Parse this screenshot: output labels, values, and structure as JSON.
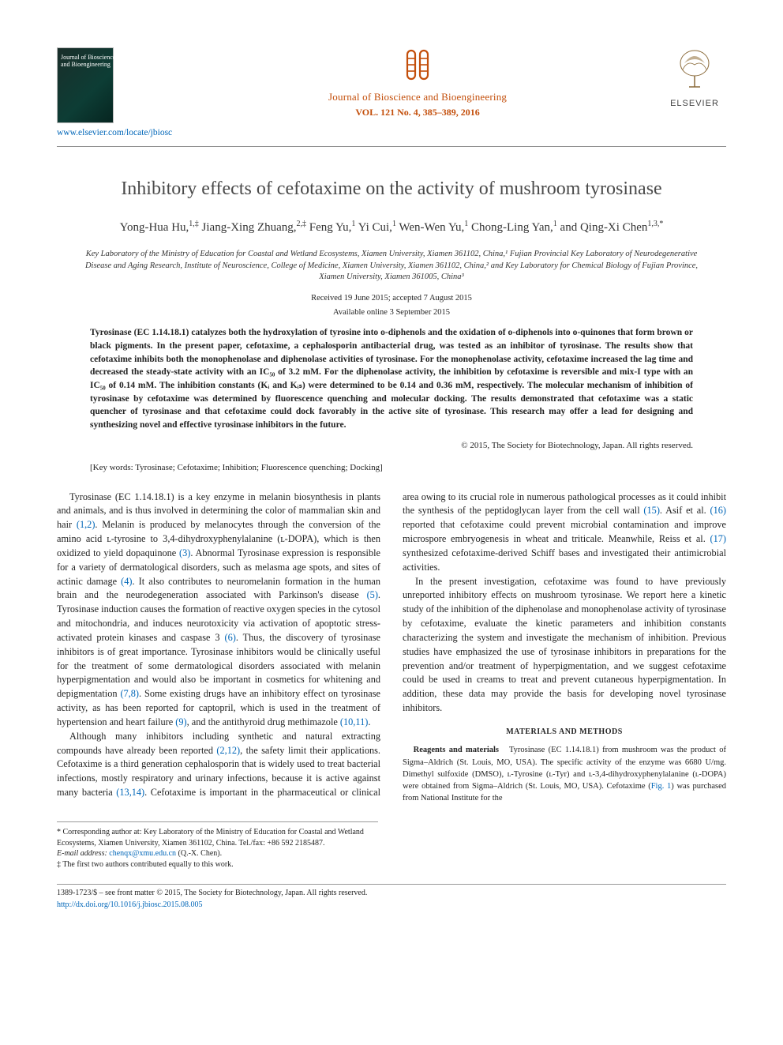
{
  "header": {
    "journal_thumb_text": "Journal of\nBioscience and\nBioengineering",
    "journal_name": "Journal of Bioscience and Bioengineering",
    "vol_line": "VOL. 121 No. 4, 385–389, 2016",
    "elsevier": "ELSEVIER",
    "locate_link": "www.elsevier.com/locate/jbiosc",
    "colors": {
      "brand": "#c34e0a",
      "link": "#0066b8",
      "rule": "#8f8f8f"
    }
  },
  "title": "Inhibitory effects of cefotaxime on the activity of mushroom tyrosinase",
  "authors_html": "Yong-Hua Hu,<sup>1,‡</sup> Jiang-Xing Zhuang,<sup>2,‡</sup> Feng Yu,<sup>1</sup> Yi Cui,<sup>1</sup> Wen-Wen Yu,<sup>1</sup> Chong-Ling Yan,<sup>1</sup> and Qing-Xi Chen<sup>1,3,*</sup>",
  "affiliations": "Key Laboratory of the Ministry of Education for Coastal and Wetland Ecosystems, Xiamen University, Xiamen 361102, China,¹ Fujian Provincial Key Laboratory of Neurodegenerative Disease and Aging Research, Institute of Neuroscience, College of Medicine, Xiamen University, Xiamen 361102, China,² and Key Laboratory for Chemical Biology of Fujian Province, Xiamen University, Xiamen 361005, China³",
  "dates": {
    "received": "Received 19 June 2015; accepted 7 August 2015",
    "online": "Available online 3 September 2015"
  },
  "abstract": "Tyrosinase (EC 1.14.18.1) catalyzes both the hydroxylation of tyrosine into o-diphenols and the oxidation of o-diphenols into o-quinones that form brown or black pigments. In the present paper, cefotaxime, a cephalosporin antibacterial drug, was tested as an inhibitor of tyrosinase. The results show that cefotaxime inhibits both the monophenolase and diphenolase activities of tyrosinase. For the monophenolase activity, cefotaxime increased the lag time and decreased the steady-state activity with an IC₅₀ of 3.2 mM. For the diphenolase activity, the inhibition by cefotaxime is reversible and mix-I type with an IC₅₀ of 0.14 mM. The inhibition constants (Kᵢ and Kᵢₛ) were determined to be 0.14 and 0.36 mM, respectively. The molecular mechanism of inhibition of tyrosinase by cefotaxime was determined by fluorescence quenching and molecular docking. The results demonstrated that cefotaxime was a static quencher of tyrosinase and that cefotaxime could dock favorably in the active site of tyrosinase. This research may offer a lead for designing and synthesizing novel and effective tyrosinase inhibitors in the future.",
  "copyright": "© 2015, The Society for Biotechnology, Japan. All rights reserved.",
  "keywords": "[Key words: Tyrosinase; Cefotaxime; Inhibition; Fluorescence quenching; Docking]",
  "body": {
    "p1": "Tyrosinase (EC 1.14.18.1) is a key enzyme in melanin biosynthesis in plants and animals, and is thus involved in determining the color of mammalian skin and hair ",
    "p1_ref": "(1,2)",
    "p1b": ". Melanin is produced by melanocytes through the conversion of the amino acid ʟ-tyrosine to 3,4-dihydroxyphenylalanine (ʟ-DOPA), which is then oxidized to yield dopaquinone ",
    "p1_ref2": "(3)",
    "p1c": ". Abnormal Tyrosinase expression is responsible for a variety of dermatological disorders, such as melasma age spots, and sites of actinic damage ",
    "p1_ref3": "(4)",
    "p1d": ". It also contributes to neuromelanin formation in the human brain and the neurodegeneration associated with Parkinson's disease ",
    "p1_ref4": "(5)",
    "p1e": ". Tyrosinase induction causes the formation of reactive oxygen species in the cytosol and mitochondria, and induces neurotoxicity via activation of apoptotic stress-activated protein kinases and caspase 3 ",
    "p1_ref5": "(6)",
    "p1f": ". Thus, the discovery of tyrosinase inhibitors is of great importance. Tyrosinase inhibitors would be clinically useful for the treatment of some dermatological disorders associated with melanin hyperpigmentation and would also be important in cosmetics for whitening and depigmentation ",
    "p1_ref6": "(7,8)",
    "p1g": ". Some existing drugs have an inhibitory effect on tyrosinase activity, as has been reported for captopril, which is used in the treatment of hypertension and heart failure ",
    "p1_ref7": "(9)",
    "p1h": ", and the antithyroid drug methimazole ",
    "p1_ref8": "(10,11)",
    "p1i": ".",
    "p2a": "Although many inhibitors including synthetic and natural extracting compounds have already been reported ",
    "p2_ref1": "(2,12)",
    "p2b": ", the safety limit their applications. Cefotaxime is a third generation cephalosporin that is widely used to treat bacterial infections, mostly respiratory and urinary infections, because it is active against many bacteria ",
    "p2_ref2": "(13,14)",
    "p2c": ". Cefotaxime is important in the pharmaceutical or clinical area owing to its crucial role in numerous pathological processes as it could inhibit the synthesis of the peptidoglycan layer from the cell wall ",
    "p2_ref3": "(15)",
    "p2d": ". Asif et al. ",
    "p2_ref4": "(16)",
    "p2e": " reported that cefotaxime could prevent microbial contamination and improve microspore embryogenesis in wheat and triticale. Meanwhile, Reiss et al. ",
    "p2_ref5": "(17)",
    "p2f": " synthesized cefotaxime-derived Schiff bases and investigated their antimicrobial activities.",
    "p3": "In the present investigation, cefotaxime was found to have previously unreported inhibitory effects on mushroom tyrosinase. We report here a kinetic study of the inhibition of the diphenolase and monophenolase activity of tyrosinase by cefotaxime, evaluate the kinetic parameters and inhibition constants characterizing the system and investigate the mechanism of inhibition. Previous studies have emphasized the use of tyrosinase inhibitors in preparations for the prevention and/or treatment of hyperpigmentation, and we suggest cefotaxime could be used in creams to treat and prevent cutaneous hyperpigmentation. In addition, these data may provide the basis for developing novel tyrosinase inhibitors."
  },
  "mm": {
    "heading": "MATERIALS AND METHODS",
    "lead": "Reagents and materials",
    "text": "Tyrosinase (EC 1.14.18.1) from mushroom was the product of Sigma–Aldrich (St. Louis, MO, USA). The specific activity of the enzyme was 6680 U/mg. Dimethyl sulfoxide (DMSO), ʟ-Tyrosine (ʟ-Tyr) and ʟ-3,4-dihydroxyphenylalanine (ʟ-DOPA) were obtained from Sigma–Aldrich (St. Louis, MO, USA). Cefotaxime (",
    "fig_ref": "Fig. 1",
    "text2": ") was purchased from National Institute for the"
  },
  "footnotes": {
    "corr": "* Corresponding author at: Key Laboratory of the Ministry of Education for Coastal and Wetland Ecosystems, Xiamen University, Xiamen 361102, China. Tel./fax: +86 592 2185487.",
    "email_label": "E-mail address:",
    "email": "chenqx@xmu.edu.cn",
    "email_tail": " (Q.-X. Chen).",
    "equal": "‡ The first two authors contributed equally to this work."
  },
  "bottom": {
    "issn": "1389-1723/$ – see front matter © 2015, The Society for Biotechnology, Japan. All rights reserved.",
    "doi": "http://dx.doi.org/10.1016/j.jbiosc.2015.08.005"
  }
}
